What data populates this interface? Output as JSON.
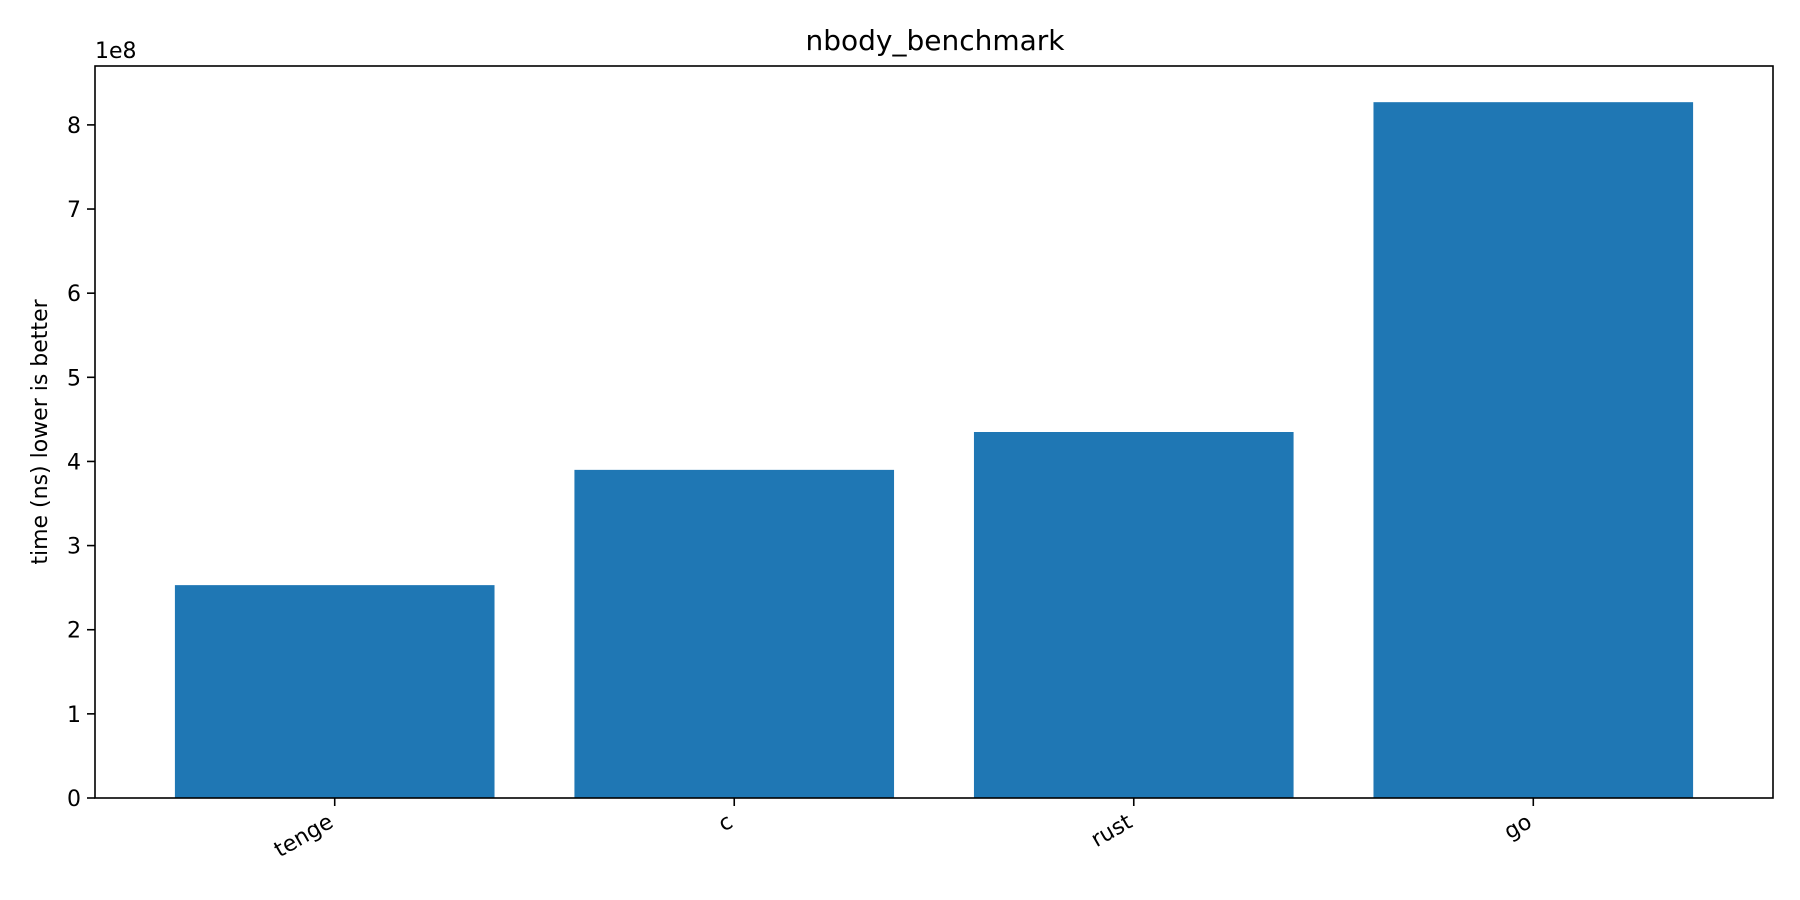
{
  "chart_data": {
    "type": "bar",
    "title": "nbody_benchmark",
    "xlabel": "",
    "ylabel": "time (ns) lower is better",
    "y_offset_label": "1e8",
    "y_scale_factor": 100000000,
    "categories": [
      "tenge",
      "c",
      "rust",
      "go"
    ],
    "values": [
      253000000,
      390000000,
      435000000,
      827000000
    ],
    "ylim": [
      0,
      870000000
    ],
    "y_ticks": [
      0,
      100000000,
      200000000,
      300000000,
      400000000,
      500000000,
      600000000,
      700000000,
      800000000
    ],
    "y_tick_labels": [
      "0",
      "1",
      "2",
      "3",
      "4",
      "5",
      "6",
      "7",
      "8"
    ],
    "x_tick_rotation": -30,
    "bar_color": "#1f77b4",
    "grid": false,
    "legend": "none"
  }
}
